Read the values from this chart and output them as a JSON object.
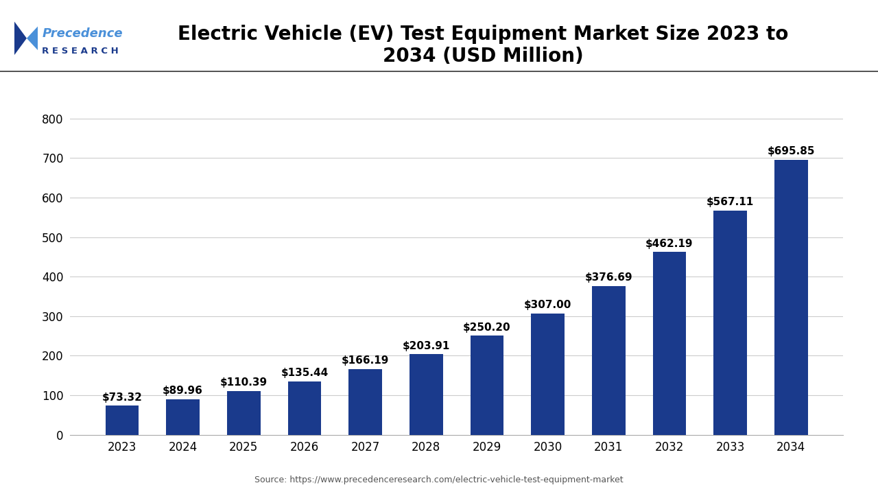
{
  "years": [
    "2023",
    "2024",
    "2025",
    "2026",
    "2027",
    "2028",
    "2029",
    "2030",
    "2031",
    "2032",
    "2033",
    "2034"
  ],
  "values": [
    73.32,
    89.96,
    110.39,
    135.44,
    166.19,
    203.91,
    250.2,
    307.0,
    376.69,
    462.19,
    567.11,
    695.85
  ],
  "labels": [
    "$73.32",
    "$89.96",
    "$110.39",
    "$135.44",
    "$166.19",
    "$203.91",
    "$250.20",
    "$307.00",
    "$376.69",
    "$462.19",
    "$567.11",
    "$695.85"
  ],
  "bar_color": "#1a3a8c",
  "title_line1": "Electric Vehicle (EV) Test Equipment Market Size 2023 to",
  "title_line2": "2034 (USD Million)",
  "ylim": [
    0,
    850
  ],
  "yticks": [
    0,
    100,
    200,
    300,
    400,
    500,
    600,
    700,
    800
  ],
  "source_text": "Source: https://www.precedenceresearch.com/electric-vehicle-test-equipment-market",
  "background_color": "#ffffff",
  "grid_color": "#cccccc",
  "title_fontsize": 20,
  "label_fontsize": 11,
  "tick_fontsize": 12,
  "source_fontsize": 9,
  "logo_color_dark": "#1a3a8c",
  "logo_color_light": "#4a90d9"
}
